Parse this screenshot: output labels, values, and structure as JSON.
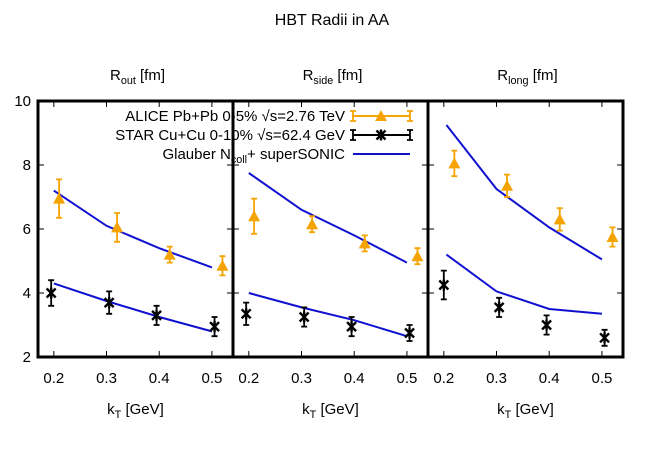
{
  "chart_data": {
    "type": "scatter",
    "title": "HBT Radii in AA",
    "ylim": [
      2,
      10
    ],
    "yticks": [
      2,
      4,
      6,
      8,
      10
    ],
    "xlim": [
      0.17,
      0.54
    ],
    "xticks": [
      0.2,
      0.3,
      0.4,
      0.5
    ],
    "xtick_labels": [
      "0.2",
      "0.3",
      "0.4",
      "0.5"
    ],
    "grid": false,
    "legend_position": "top",
    "panels": [
      {
        "ylabel_main": "R",
        "ylabel_sub": "out",
        "ylabel_unit": " [fm]",
        "xlabel_main": "k",
        "xlabel_sub": "T",
        "xlabel_unit": " [GeV]",
        "alice": {
          "x": [
            0.21,
            0.32,
            0.42,
            0.52
          ],
          "y": [
            6.95,
            6.05,
            5.2,
            4.85
          ],
          "err": [
            0.6,
            0.45,
            0.25,
            0.3
          ]
        },
        "star": {
          "x": [
            0.195,
            0.305,
            0.395,
            0.505
          ],
          "y": [
            4.0,
            3.7,
            3.3,
            2.95
          ],
          "err": [
            0.4,
            0.35,
            0.3,
            0.3
          ]
        },
        "model_upper": {
          "x": [
            0.2,
            0.3,
            0.4,
            0.5
          ],
          "y": [
            7.2,
            6.1,
            5.4,
            4.8
          ]
        },
        "model_lower": {
          "x": [
            0.2,
            0.3,
            0.4,
            0.5
          ],
          "y": [
            4.3,
            3.75,
            3.25,
            2.8
          ]
        }
      },
      {
        "ylabel_main": "R",
        "ylabel_sub": "side",
        "ylabel_unit": " [fm]",
        "xlabel_main": "k",
        "xlabel_sub": "T",
        "xlabel_unit": " [GeV]",
        "alice": {
          "x": [
            0.21,
            0.32,
            0.42,
            0.52
          ],
          "y": [
            6.4,
            6.15,
            5.55,
            5.15
          ],
          "err": [
            0.55,
            0.25,
            0.25,
            0.25
          ]
        },
        "star": {
          "x": [
            0.195,
            0.305,
            0.395,
            0.505
          ],
          "y": [
            3.35,
            3.25,
            2.95,
            2.75
          ],
          "err": [
            0.35,
            0.3,
            0.3,
            0.25
          ]
        },
        "model_upper": {
          "x": [
            0.2,
            0.3,
            0.4,
            0.5
          ],
          "y": [
            7.75,
            6.6,
            5.8,
            4.95
          ]
        },
        "model_lower": {
          "x": [
            0.2,
            0.3,
            0.4,
            0.5
          ],
          "y": [
            4.0,
            3.55,
            3.15,
            2.65
          ]
        }
      },
      {
        "ylabel_main": "R",
        "ylabel_sub": "long",
        "ylabel_unit": " [fm]",
        "xlabel_main": "k",
        "xlabel_sub": "T",
        "xlabel_unit": " [GeV]",
        "alice": {
          "x": [
            0.22,
            0.32,
            0.42,
            0.52
          ],
          "y": [
            8.05,
            7.35,
            6.3,
            5.75
          ],
          "err": [
            0.4,
            0.35,
            0.35,
            0.3
          ]
        },
        "star": {
          "x": [
            0.2,
            0.305,
            0.395,
            0.505
          ],
          "y": [
            4.25,
            3.55,
            3.0,
            2.6
          ],
          "err": [
            0.45,
            0.3,
            0.3,
            0.25
          ]
        },
        "model_upper": {
          "x": [
            0.205,
            0.3,
            0.4,
            0.5
          ],
          "y": [
            9.25,
            7.25,
            6.05,
            5.05
          ]
        },
        "model_lower": {
          "x": [
            0.205,
            0.3,
            0.4,
            0.5
          ],
          "y": [
            5.2,
            4.05,
            3.5,
            3.35
          ]
        }
      }
    ],
    "legend": [
      {
        "label": "ALICE Pb+Pb 0-5% √s=2.76 TeV",
        "symbol": "triangle"
      },
      {
        "label": "STAR Cu+Cu 0-10% √s=62.4 GeV",
        "symbol": "star"
      },
      {
        "label_main": "Glauber  N",
        "label_sub": "coll",
        "label_rest": "+ superSONIC",
        "symbol": "line"
      }
    ],
    "colors": {
      "alice": "#f5a300",
      "star": "#000000",
      "model": "#1010d0",
      "frame": "#000000"
    }
  }
}
